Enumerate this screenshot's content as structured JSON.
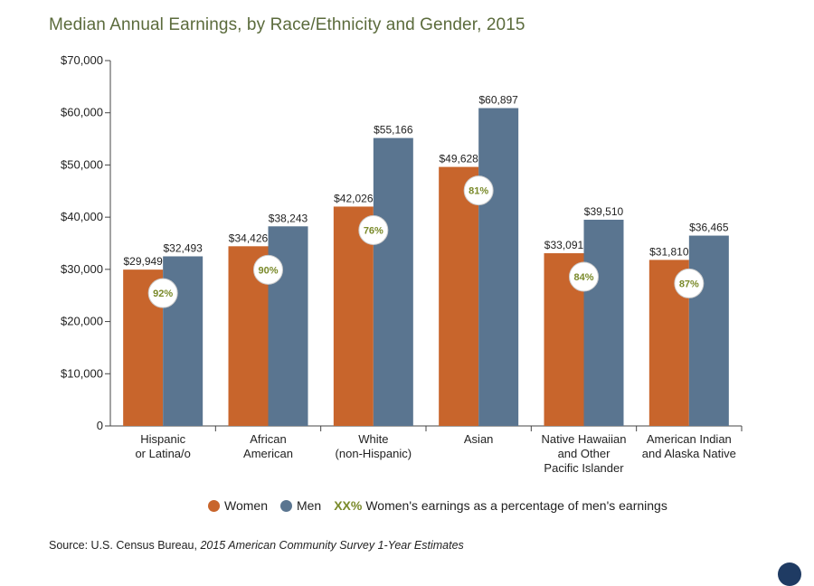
{
  "title": "Median Annual Earnings, by Race/Ethnicity and Gender, 2015",
  "colors": {
    "women": "#c8652c",
    "men": "#5a7590",
    "title": "#5b6b3c",
    "pct_text": "#7a8a2a"
  },
  "legend": {
    "women": "Women",
    "men": "Men",
    "pct_symbol": "XX%",
    "pct_text": "Women's earnings as a percentage of men's earnings"
  },
  "source": {
    "prefix": "Source: U.S. Census Bureau, ",
    "italic": "2015 American Community Survey 1-Year Estimates"
  },
  "chart_data": {
    "type": "bar",
    "title": "Median Annual Earnings, by Race/Ethnicity and Gender, 2015",
    "categories": [
      [
        "Hispanic",
        "or Latina/o"
      ],
      [
        "African",
        "American"
      ],
      [
        "White",
        "(non-Hispanic)"
      ],
      [
        "Asian"
      ],
      [
        "Native Hawaiian",
        "and Other",
        "Pacific Islander"
      ],
      [
        "American Indian",
        "and Alaska Native"
      ]
    ],
    "series": [
      {
        "name": "Women",
        "values": [
          29949,
          34426,
          42026,
          49628,
          33091,
          31810
        ],
        "labels": [
          "$29,949",
          "$34,426",
          "$42,026",
          "$49,628",
          "$33,091",
          "$31,810"
        ]
      },
      {
        "name": "Men",
        "values": [
          32493,
          38243,
          55166,
          60897,
          39510,
          36465
        ],
        "labels": [
          "$32,493",
          "$38,243",
          "$55,166",
          "$60,897",
          "$39,510",
          "$36,465"
        ]
      }
    ],
    "percentages": [
      "92%",
      "90%",
      "76%",
      "81%",
      "84%",
      "87%"
    ],
    "ylim": [
      0,
      70000
    ],
    "yticks": [
      0,
      10000,
      20000,
      30000,
      40000,
      50000,
      60000,
      70000
    ],
    "ytick_labels": [
      "0",
      "$10,000",
      "$20,000",
      "$30,000",
      "$40,000",
      "$50,000",
      "$60,000",
      "$70,000"
    ],
    "xlabel": "",
    "ylabel": ""
  }
}
